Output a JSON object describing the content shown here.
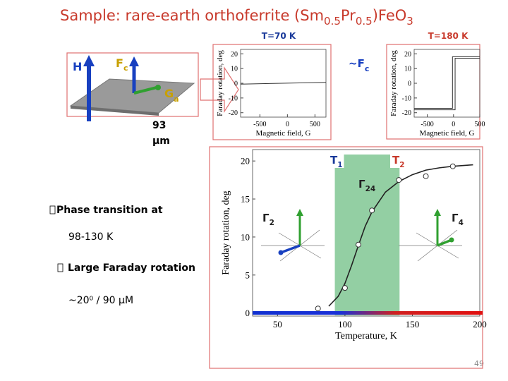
{
  "title": [
    "Sample: rare-earth orthoferrite (Sm",
    "0.5",
    "Pr",
    "0.5",
    ")FeO",
    "3"
  ],
  "diagram": {
    "h": "H",
    "f": "F",
    "f_sub": "c",
    "g": "G",
    "g_sub": "a",
    "thickness": "93",
    "thickness_unit": "µm"
  },
  "mode_label": {
    "text": "~F",
    "sub": "c"
  },
  "bullets": [
    {
      "text": "Phase transition at",
      "detail": "98-130 K"
    },
    {
      "text": "Large Faraday rotation",
      "detail": "~20⁰ / 90 µM"
    }
  ],
  "page_number": "49",
  "chart_data": [
    {
      "type": "line",
      "title": "T=70 K",
      "x_label": "Magnetic field, G",
      "y_label": "Faraday rotation, deg",
      "xlim": [
        -850,
        700
      ],
      "xticks": [
        -500,
        0,
        500
      ],
      "ylim": [
        -23,
        23
      ],
      "yticks": [
        -20,
        -10,
        0,
        10,
        20
      ],
      "series": [
        {
          "color": "#333333",
          "x": [
            -850,
            700
          ],
          "values": [
            -0.6,
            0.6
          ]
        }
      ]
    },
    {
      "type": "line",
      "title": "T=180 K",
      "x_label": "Magnetic field, G",
      "y_label": "Faraday rotation, deg",
      "xlim": [
        -750,
        500
      ],
      "xticks": [
        -500,
        0,
        500
      ],
      "ylim": [
        -23,
        23
      ],
      "yticks": [
        -20,
        -10,
        0,
        10,
        20
      ],
      "series": [
        {
          "color": "#333333",
          "x": [
            -750,
            30,
            30,
            500
          ],
          "values": [
            -18,
            -18,
            17,
            17
          ]
        },
        {
          "color": "#333333",
          "x": [
            500,
            -20,
            -20,
            -750
          ],
          "values": [
            18,
            18,
            -17,
            -17
          ]
        }
      ]
    },
    {
      "type": "scatter",
      "x_label": "Temperature, K",
      "y_label": "Faraday rotation, deg",
      "xlim": [
        31.5,
        200
      ],
      "xticks": [
        50,
        100,
        150,
        200
      ],
      "ylim": [
        -0.4,
        21.5
      ],
      "yticks": [
        0,
        5,
        10,
        15,
        20
      ],
      "shaded_range": [
        92.5,
        140.5
      ],
      "shade_color": "#93cfa3",
      "annotations": [
        {
          "text": "T",
          "sub": "1"
        },
        {
          "text": "T",
          "sub": "2"
        },
        {
          "text": "Γ",
          "sub": "24"
        },
        {
          "text": "Γ",
          "sub": "2"
        },
        {
          "text": "Γ",
          "sub": "4"
        }
      ],
      "series": [
        {
          "type": "line",
          "color": "#222222",
          "x": [
            88,
            95,
            100,
            105,
            110,
            115,
            120,
            130,
            140,
            150,
            160,
            170,
            180,
            195
          ],
          "values": [
            0.9,
            2.2,
            3.9,
            6.3,
            8.9,
            11.4,
            13.3,
            15.9,
            17.3,
            18.2,
            18.8,
            19.1,
            19.3,
            19.5
          ]
        },
        {
          "type": "points",
          "color": "#333333",
          "x": [
            80,
            100,
            110,
            120,
            140,
            160,
            180
          ],
          "values": [
            0.6,
            3.3,
            9,
            13.5,
            17.5,
            18,
            19.3
          ]
        }
      ]
    }
  ]
}
